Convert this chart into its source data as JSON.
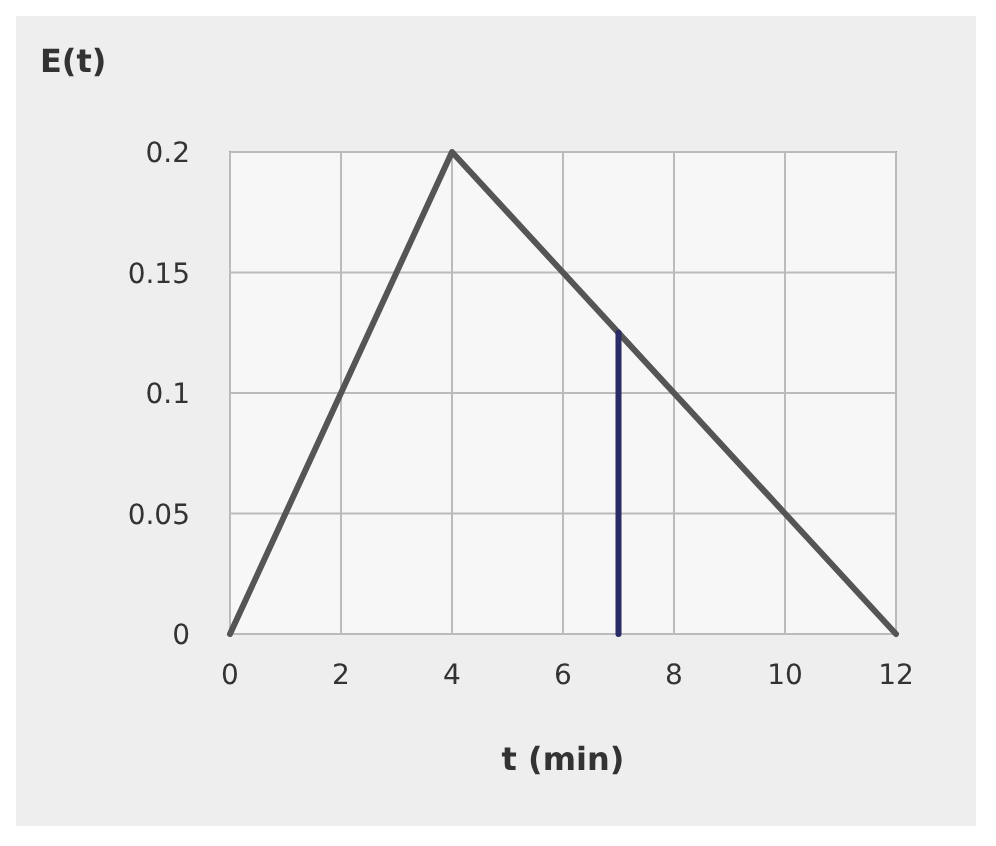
{
  "chart_data": {
    "type": "line",
    "xlabel": "t (min)",
    "ylabel": "E(t)",
    "xlim": [
      0,
      12
    ],
    "ylim": [
      0,
      0.2
    ],
    "xticks": [
      0,
      2,
      4,
      6,
      8,
      10,
      12
    ],
    "yticks": [
      0,
      0.05,
      0.1,
      0.15,
      0.2
    ],
    "grid": true,
    "marker": "none",
    "line_style": "solid",
    "series": [
      {
        "color": "#555555",
        "x": [
          0,
          4,
          12
        ],
        "values": [
          0,
          0.2,
          0
        ]
      },
      {
        "color": "#2b2b66",
        "x": [
          7,
          7
        ],
        "values": [
          0,
          0.125
        ]
      }
    ]
  }
}
